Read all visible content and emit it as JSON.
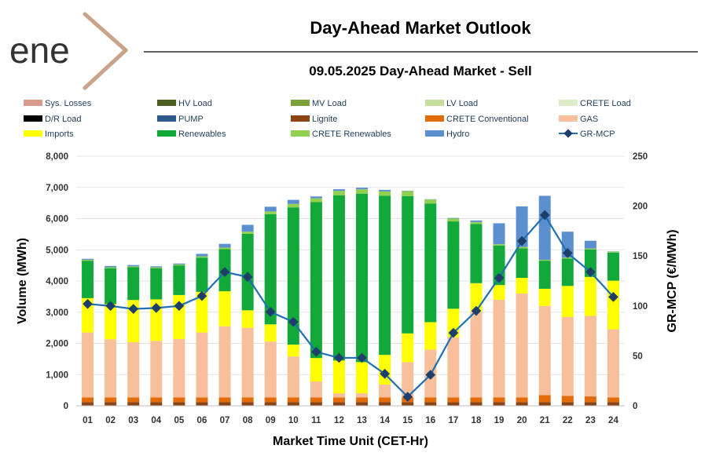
{
  "header": {
    "logo_text": "ene",
    "title": "Day-Ahead Market Outlook",
    "subtitle": "09.05.2025  Day-Ahead Market - Sell"
  },
  "colors": {
    "sys_losses": "#d99a8c",
    "hv_load": "#4b5e1f",
    "mv_load": "#7aa23a",
    "lv_load": "#c5dea0",
    "crete_load": "#dcebc8",
    "dr_load": "#000000",
    "pump": "#2f5a8c",
    "lignite": "#8b4513",
    "crete_conventional": "#e36c0a",
    "gas": "#f8c09a",
    "imports": "#ffff00",
    "renewables": "#12a83a",
    "crete_renewables": "#92d050",
    "hydro": "#5b8fd0",
    "mcp_line": "#1f6fb4",
    "mcp_marker": "#1f3f6b",
    "logo_dark": "#333333",
    "logo_accent": "#c9a48a"
  },
  "chart_data": {
    "type": "bar",
    "stacked": true,
    "xlabel": "Market Time Unit (CET-Hr)",
    "ylabel": "Volume (MWh)",
    "y2label": "GR-MCP (€/MWh)",
    "ylim": [
      0,
      8000
    ],
    "y2lim": [
      0,
      250
    ],
    "yticks": [
      "0",
      "1,000",
      "2,000",
      "3,000",
      "4,000",
      "5,000",
      "6,000",
      "7,000",
      "8,000"
    ],
    "y2ticks": [
      "0",
      "50",
      "100",
      "150",
      "200",
      "250"
    ],
    "categories": [
      "01",
      "02",
      "03",
      "04",
      "05",
      "06",
      "07",
      "08",
      "09",
      "10",
      "11",
      "12",
      "13",
      "14",
      "15",
      "16",
      "17",
      "18",
      "19",
      "20",
      "21",
      "22",
      "23",
      "24"
    ],
    "legend": [
      {
        "name": "Sys. Losses",
        "key": "sys_losses"
      },
      {
        "name": "HV Load",
        "key": "hv_load"
      },
      {
        "name": "MV Load",
        "key": "mv_load"
      },
      {
        "name": "LV Load",
        "key": "lv_load"
      },
      {
        "name": "CRETE Load",
        "key": "crete_load"
      },
      {
        "name": "D/R Load",
        "key": "dr_load"
      },
      {
        "name": "PUMP",
        "key": "pump"
      },
      {
        "name": "Lignite",
        "key": "lignite"
      },
      {
        "name": "CRETE Conventional",
        "key": "crete_conventional"
      },
      {
        "name": "GAS",
        "key": "gas"
      },
      {
        "name": "Imports",
        "key": "imports"
      },
      {
        "name": "Renewables",
        "key": "renewables"
      },
      {
        "name": "CRETE Renewables",
        "key": "crete_renewables"
      },
      {
        "name": "Hydro",
        "key": "hydro"
      },
      {
        "name": "GR-MCP",
        "key": "mcp_line",
        "line": true
      }
    ],
    "series": [
      {
        "key": "lignite",
        "values": [
          120,
          120,
          120,
          120,
          120,
          120,
          120,
          120,
          120,
          120,
          120,
          120,
          120,
          120,
          120,
          120,
          120,
          120,
          120,
          120,
          120,
          120,
          120,
          120
        ]
      },
      {
        "key": "crete_conventional",
        "values": [
          150,
          150,
          150,
          150,
          150,
          150,
          150,
          150,
          150,
          150,
          150,
          150,
          150,
          150,
          150,
          150,
          150,
          150,
          150,
          150,
          220,
          200,
          180,
          150
        ]
      },
      {
        "key": "gas",
        "values": [
          2080,
          1860,
          1770,
          1810,
          1870,
          2080,
          2280,
          2230,
          1790,
          1310,
          510,
          130,
          130,
          410,
          1130,
          1530,
          1930,
          2730,
          3130,
          3330,
          2860,
          2530,
          2580,
          2180
        ]
      },
      {
        "key": "imports",
        "values": [
          1100,
          1130,
          1350,
          1330,
          1410,
          1300,
          1120,
          560,
          550,
          380,
          750,
          1050,
          1000,
          950,
          920,
          880,
          910,
          930,
          470,
          500,
          550,
          990,
          1250,
          1560
        ]
      },
      {
        "key": "renewables",
        "values": [
          1200,
          1150,
          1050,
          1000,
          950,
          1100,
          1350,
          2450,
          3530,
          4400,
          5000,
          5300,
          5400,
          5100,
          4400,
          3800,
          2800,
          1900,
          1270,
          950,
          900,
          880,
          880,
          900
        ]
      },
      {
        "key": "crete_renewables",
        "values": [
          30,
          30,
          30,
          30,
          30,
          40,
          50,
          70,
          90,
          110,
          120,
          140,
          140,
          140,
          160,
          130,
          90,
          60,
          40,
          40,
          30,
          30,
          30,
          30
        ]
      },
      {
        "key": "hydro",
        "values": [
          30,
          40,
          40,
          30,
          30,
          80,
          120,
          220,
          150,
          130,
          60,
          50,
          50,
          50,
          10,
          10,
          20,
          50,
          670,
          1300,
          2050,
          830,
          250,
          10
        ]
      }
    ],
    "mcp": [
      102,
      100,
      97,
      98,
      100,
      110,
      134,
      129,
      94,
      84,
      54,
      48,
      48,
      32,
      9,
      31,
      73,
      95,
      128,
      165,
      191,
      153,
      134,
      109
    ]
  }
}
